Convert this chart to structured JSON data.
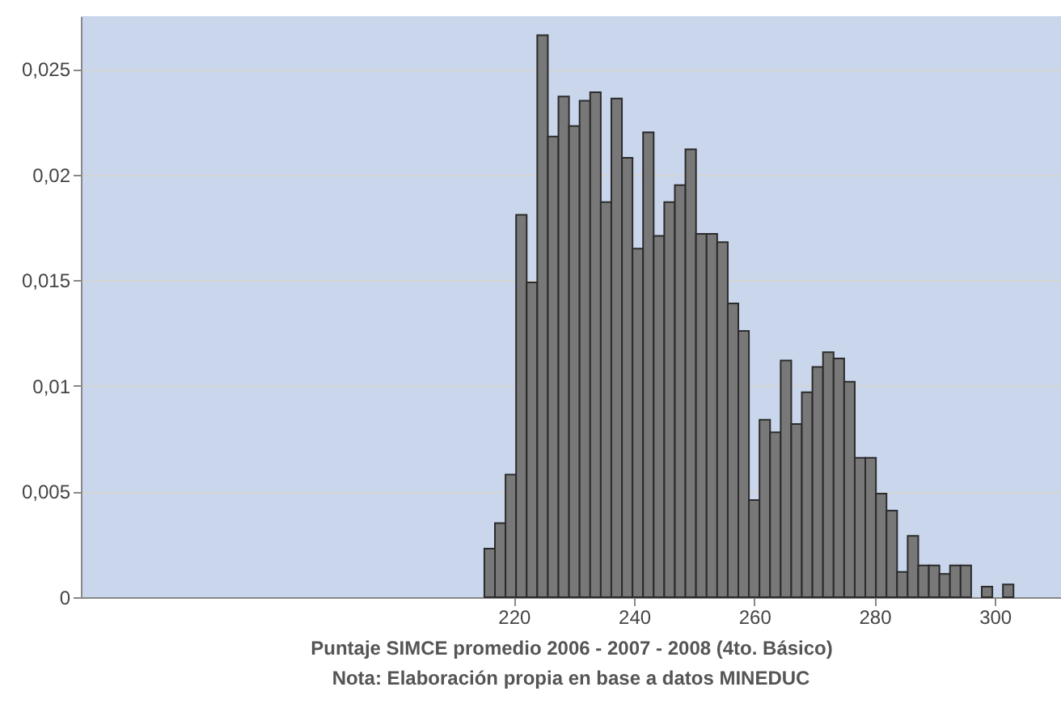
{
  "chart_data": {
    "type": "histogram",
    "xlabel": "Puntaje SIMCE promedio 2006 - 2007 - 2008 (4to. Básico)",
    "annotations": [
      "Nota: Elaboración propia en base a datos MINEDUC"
    ],
    "bins": [
      215.1,
      216.86,
      218.62,
      220.38,
      222.14,
      223.9,
      225.66,
      227.42,
      229.18,
      230.94,
      232.7,
      234.46,
      236.22,
      237.98,
      239.74,
      241.5,
      243.26,
      245.02,
      246.78,
      248.54,
      250.3,
      252.06,
      253.82,
      255.58,
      257.34,
      259.1,
      260.86,
      262.62,
      264.38,
      266.14,
      267.9,
      269.66,
      271.42,
      273.18,
      274.94,
      276.7,
      278.46,
      280.22,
      281.98,
      283.74,
      285.5,
      287.26,
      289.02,
      290.78,
      292.54,
      294.3,
      296.06,
      297.82,
      299.58,
      301.34,
      303.1
    ],
    "values": [
      0.0023,
      0.0035,
      0.0058,
      0.0181,
      0.0149,
      0.0266,
      0.0218,
      0.0237,
      0.0223,
      0.0235,
      0.0239,
      0.0187,
      0.0236,
      0.0208,
      0.0165,
      0.022,
      0.0171,
      0.0187,
      0.0195,
      0.0212,
      0.0172,
      0.0172,
      0.0168,
      0.0139,
      0.0126,
      0.0046,
      0.0084,
      0.0078,
      0.0112,
      0.0082,
      0.0097,
      0.0109,
      0.0116,
      0.0113,
      0.0102,
      0.0066,
      0.0066,
      0.0049,
      0.0041,
      0.0012,
      0.0029,
      0.0015,
      0.0015,
      0.0011,
      0.0015,
      0.0015,
      null,
      0.0005,
      null,
      0.0006
    ],
    "color": "#787878",
    "xlim": [
      148,
      311
    ],
    "xticks": [
      220,
      240,
      260,
      280,
      300
    ],
    "ylim": [
      0,
      0.0275
    ],
    "yticks": [
      {
        "value": 0,
        "label": "0"
      },
      {
        "value": 0.005,
        "label": "0,005"
      },
      {
        "value": 0.01,
        "label": "0,01"
      },
      {
        "value": 0.015,
        "label": "0,015"
      },
      {
        "value": 0.02,
        "label": "0,02"
      },
      {
        "value": 0.025,
        "label": "0,025"
      }
    ],
    "grid": "y"
  }
}
